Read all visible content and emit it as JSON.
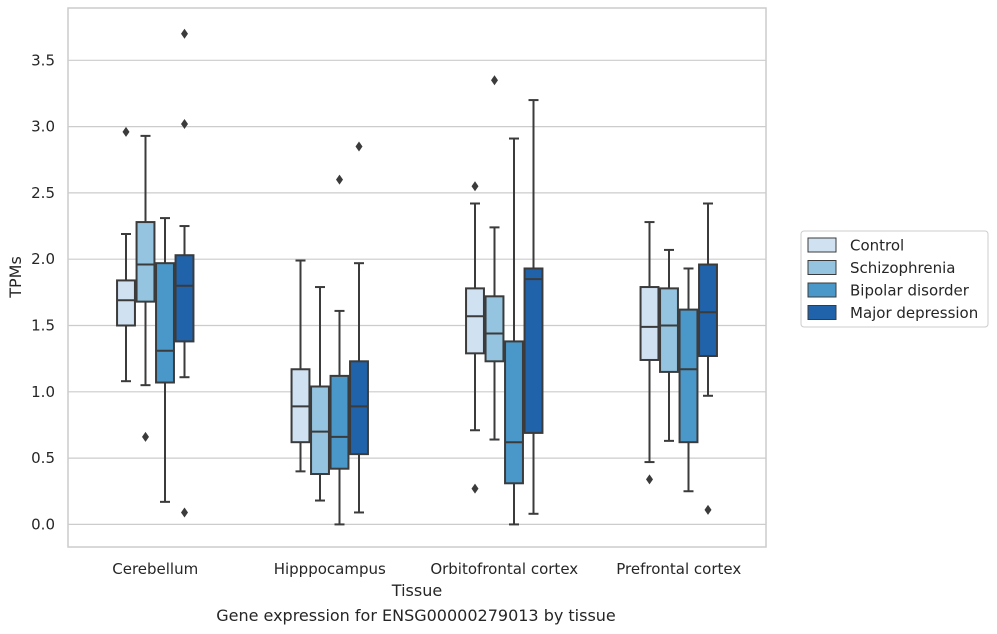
{
  "caption": "Gene expression for ENSG00000279013 by tissue",
  "chart_data": {
    "type": "box",
    "xlabel": "Tissue",
    "ylabel": "TPMs",
    "ylim": [
      -0.18,
      3.89
    ],
    "yticks": [
      "0.0",
      "0.5",
      "1.0",
      "1.5",
      "2.0",
      "2.5",
      "3.0",
      "3.5"
    ],
    "grid": true,
    "legend_position": "right",
    "categories": [
      "Cerebellum",
      "Hipppocampus",
      "Orbitofrontal cortex",
      "Prefrontal cortex"
    ],
    "series": [
      {
        "name": "Control",
        "color": "#d0e1f2",
        "boxes": [
          {
            "whislo": 1.08,
            "q1": 1.5,
            "med": 1.69,
            "q3": 1.84,
            "whishi": 2.19,
            "fliers": [
              2.96
            ]
          },
          {
            "whislo": 0.4,
            "q1": 0.62,
            "med": 0.89,
            "q3": 1.17,
            "whishi": 1.99,
            "fliers": []
          },
          {
            "whislo": 0.71,
            "q1": 1.29,
            "med": 1.57,
            "q3": 1.78,
            "whishi": 2.42,
            "fliers": [
              2.55,
              0.27
            ]
          },
          {
            "whislo": 0.47,
            "q1": 1.24,
            "med": 1.49,
            "q3": 1.79,
            "whishi": 2.28,
            "fliers": [
              0.34
            ]
          }
        ]
      },
      {
        "name": "Schizophrenia",
        "color": "#94c4df",
        "boxes": [
          {
            "whislo": 1.05,
            "q1": 1.68,
            "med": 1.96,
            "q3": 2.28,
            "whishi": 2.93,
            "fliers": [
              0.66
            ]
          },
          {
            "whislo": 0.18,
            "q1": 0.38,
            "med": 0.7,
            "q3": 1.04,
            "whishi": 1.79,
            "fliers": []
          },
          {
            "whislo": 0.64,
            "q1": 1.23,
            "med": 1.44,
            "q3": 1.72,
            "whishi": 2.24,
            "fliers": [
              3.35
            ]
          },
          {
            "whislo": 0.63,
            "q1": 1.15,
            "med": 1.5,
            "q3": 1.78,
            "whishi": 2.07,
            "fliers": []
          }
        ]
      },
      {
        "name": "Bipolar disorder",
        "color": "#4a98c9",
        "boxes": [
          {
            "whislo": 0.17,
            "q1": 1.07,
            "med": 1.31,
            "q3": 1.97,
            "whishi": 2.31,
            "fliers": []
          },
          {
            "whislo": 0.0,
            "q1": 0.42,
            "med": 0.66,
            "q3": 1.12,
            "whishi": 1.61,
            "fliers": [
              2.6
            ]
          },
          {
            "whislo": 0.0,
            "q1": 0.31,
            "med": 0.62,
            "q3": 1.38,
            "whishi": 2.91,
            "fliers": []
          },
          {
            "whislo": 0.25,
            "q1": 0.62,
            "med": 1.17,
            "q3": 1.62,
            "whishi": 1.93,
            "fliers": []
          }
        ]
      },
      {
        "name": "Major depression",
        "color": "#2163aa",
        "boxes": [
          {
            "whislo": 1.11,
            "q1": 1.38,
            "med": 1.8,
            "q3": 2.03,
            "whishi": 2.25,
            "fliers": [
              3.7,
              3.02,
              0.09
            ]
          },
          {
            "whislo": 0.09,
            "q1": 0.53,
            "med": 0.89,
            "q3": 1.23,
            "whishi": 1.97,
            "fliers": [
              2.85
            ]
          },
          {
            "whislo": 0.08,
            "q1": 0.69,
            "med": 1.85,
            "q3": 1.93,
            "whishi": 3.2,
            "fliers": []
          },
          {
            "whislo": 0.97,
            "q1": 1.27,
            "med": 1.6,
            "q3": 1.96,
            "whishi": 2.42,
            "fliers": [
              0.11
            ]
          }
        ]
      }
    ]
  }
}
